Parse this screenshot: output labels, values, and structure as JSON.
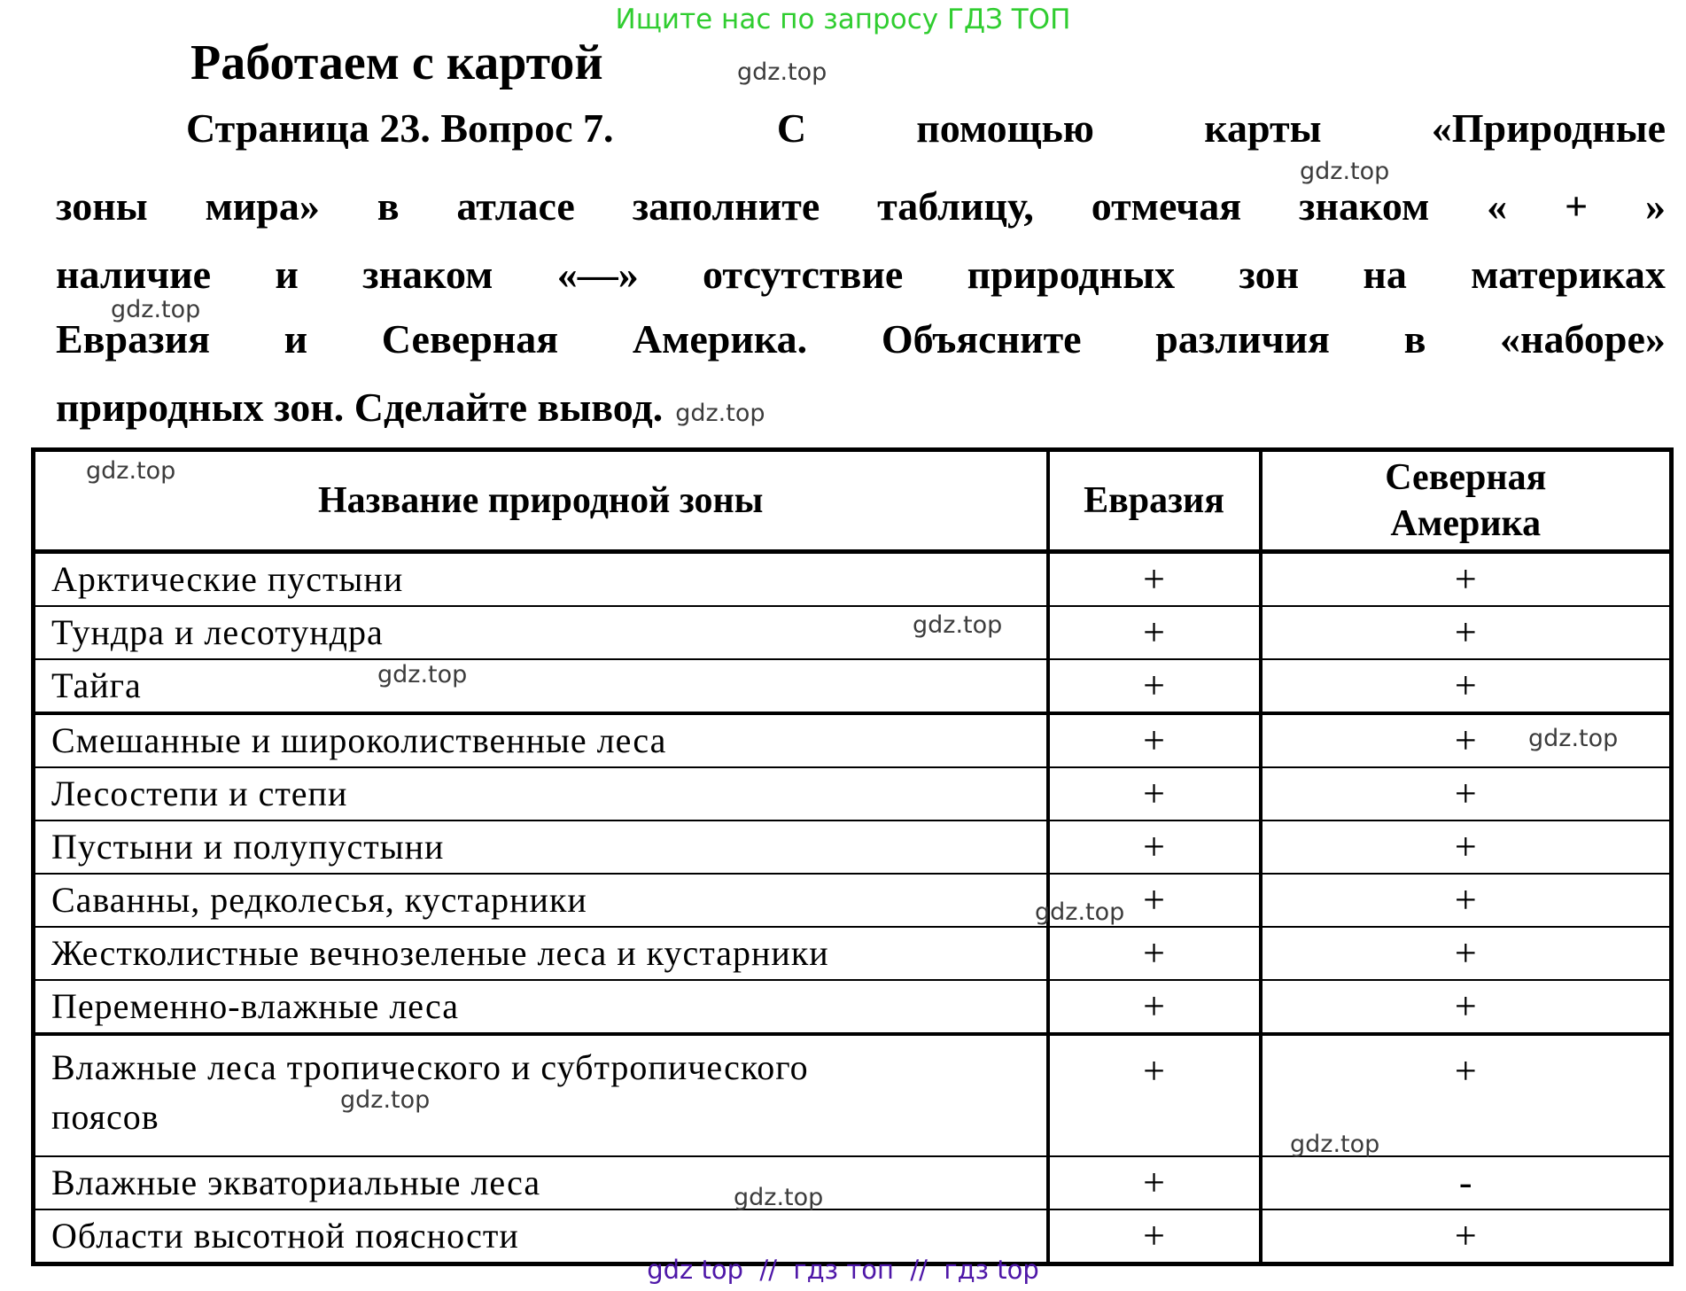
{
  "banner": {
    "text": "Ищите нас по запросу ГДЗ ТОП",
    "color": "#30cd30"
  },
  "title": "Работаем с картой",
  "watermark": "gdz.top",
  "paragraph": {
    "line1_lead": "Страница 23. Вопрос 7.",
    "line1_words": [
      "С",
      "помощью",
      "карты",
      "«Природные"
    ],
    "line2_words": [
      "зоны",
      "мира»",
      "в",
      "атласе",
      "заполните",
      "таблицу,",
      "отмечая",
      "знаком",
      "«",
      "+",
      "»"
    ],
    "line3_words": [
      "наличие",
      "и",
      "знаком",
      "«—»",
      "отсутствие",
      "природных",
      "зон",
      "на",
      "материках"
    ],
    "line4_words": [
      "Евразия",
      "и",
      "Северная",
      "Америка.",
      "Объясните",
      "различия",
      "в",
      "«наборе»"
    ],
    "line5": "природных зон. Сделайте вывод."
  },
  "table": {
    "headers": [
      "Название природной зоны",
      "Евразия",
      "Северная\nАмерика"
    ],
    "rows": [
      {
        "zone": "Арктические пустыни",
        "eurasia": "+",
        "north_america": "+"
      },
      {
        "zone": "Тундра и лесотундра",
        "eurasia": "+",
        "north_america": "+"
      },
      {
        "zone": "Тайга",
        "eurasia": "+",
        "north_america": "+",
        "thick_bottom": true
      },
      {
        "zone": "Смешанные и широколиственные леса",
        "eurasia": "+",
        "north_america": "+"
      },
      {
        "zone": "Лесостепи и степи",
        "eurasia": "+",
        "north_america": "+"
      },
      {
        "zone": "Пустыни и полупустыни",
        "eurasia": "+",
        "north_america": "+"
      },
      {
        "zone": "Саванны, редколесья, кустарники",
        "eurasia": "+",
        "north_america": "+"
      },
      {
        "zone": "Жестколистные вечнозеленые леса и кустарники",
        "eurasia": "+",
        "north_america": "+"
      },
      {
        "zone": "Переменно-влажные леса",
        "eurasia": "+",
        "north_america": "+",
        "thick_bottom": true
      },
      {
        "zone": "Влажные леса тропического и субтропического\nпоясов",
        "eurasia": "+",
        "north_america": "+",
        "tall": true
      },
      {
        "zone": "Влажные экваториальные леса",
        "eurasia": "+",
        "north_america": "-"
      },
      {
        "zone": "Области высотной поясности",
        "eurasia": "+",
        "north_america": "+"
      }
    ]
  },
  "footer": {
    "text": "gdz top  //  гдз топ  //  гдз top",
    "color": "#4e17a8"
  },
  "colors": {
    "text": "#000000",
    "border": "#000000",
    "watermark": "#3c3c3c"
  }
}
